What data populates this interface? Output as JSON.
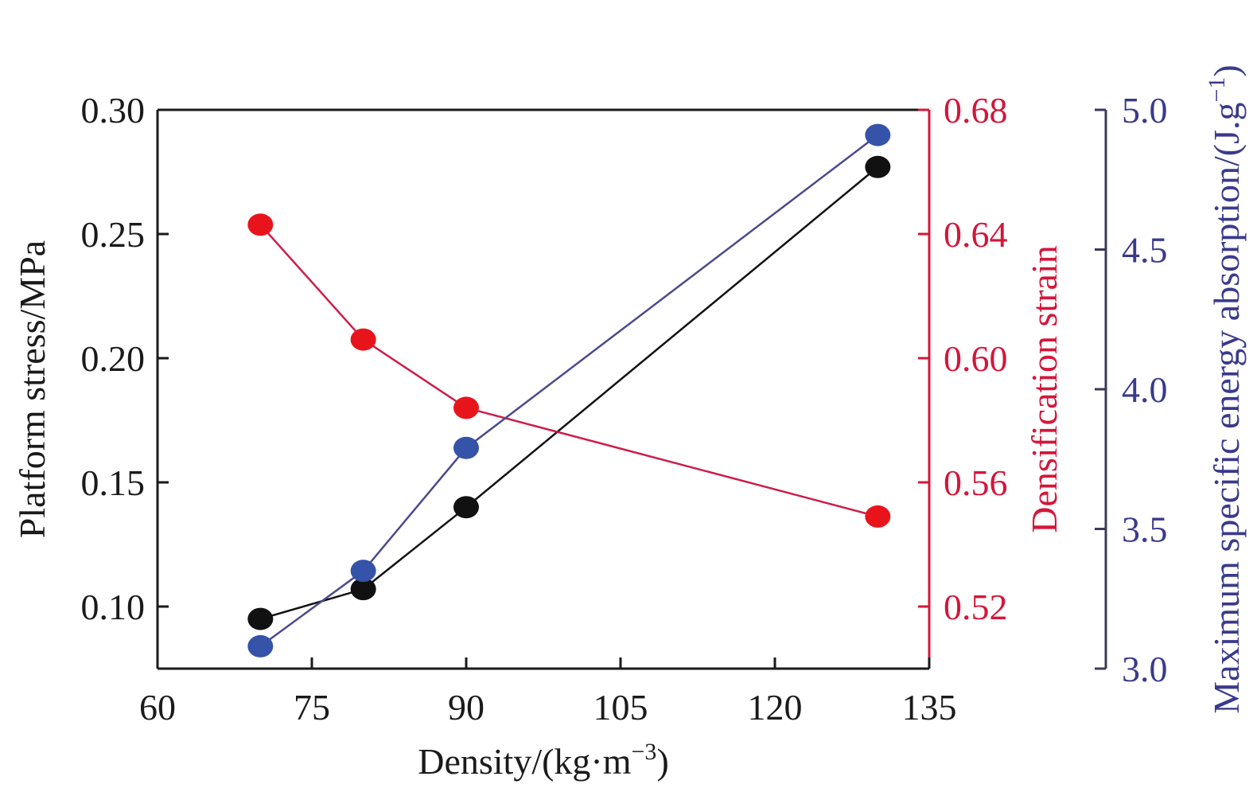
{
  "chart_data": {
    "type": "line",
    "x": [
      70,
      80,
      90,
      130
    ],
    "xlim": [
      60,
      135
    ],
    "xticks": [
      "60",
      "75",
      "90",
      "105",
      "120",
      "135"
    ],
    "xlabel": "Density/(kg·m",
    "xlabel_sup": "−3",
    "xlabel_end": ")",
    "axes": {
      "left": {
        "label": "Platform stress/MPa",
        "ylim": [
          0.075,
          0.3
        ],
        "ticks": [
          "0.30",
          "0.25",
          "0.20",
          "0.15",
          "0.10"
        ],
        "color": "#1a1a1a"
      },
      "right1": {
        "label": "Densification strain",
        "ylim": [
          0.5,
          0.68
        ],
        "ticks": [
          "0.68",
          "0.64",
          "0.60",
          "0.56",
          "0.52"
        ],
        "color": "#d4163a"
      },
      "right2": {
        "label": "Maximum specific energy absorption/(J.g",
        "label_sup": "−1",
        "label_end": ")",
        "ylim": [
          3.0,
          5.0
        ],
        "ticks": [
          "5.0",
          "4.5",
          "4.0",
          "3.5",
          "3.0"
        ],
        "color": "#3a3a8c"
      }
    },
    "series": [
      {
        "axis": "left",
        "values": [
          0.095,
          0.107,
          0.14,
          0.277
        ],
        "line_color": "#111111",
        "marker_color": "#111111"
      },
      {
        "axis": "right1",
        "values": [
          0.643,
          0.606,
          0.584,
          0.549
        ],
        "line_color": "#cc1d4a",
        "marker_color": "#e8141c"
      },
      {
        "axis": "right2",
        "values": [
          3.08,
          3.35,
          3.79,
          4.91
        ],
        "line_color": "#4a4a8e",
        "marker_color": "#3553a8"
      }
    ]
  }
}
